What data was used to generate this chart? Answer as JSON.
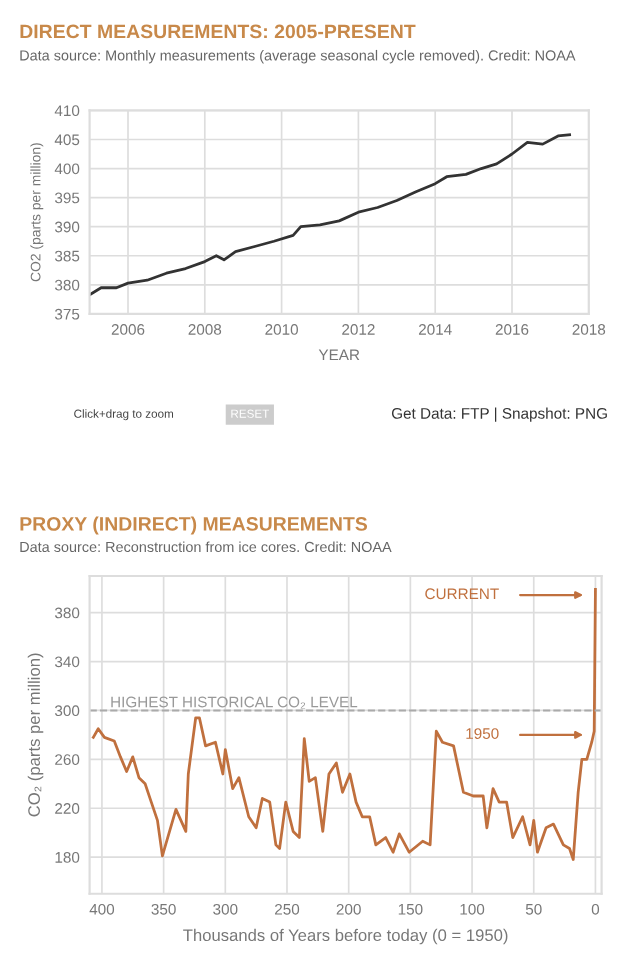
{
  "chart_data": [
    {
      "type": "line",
      "title": "DIRECT MEASUREMENTS: 2005-PRESENT",
      "subtitle": "Data source: Monthly measurements (average seasonal cycle removed). Credit: NOAA",
      "xlabel": "YEAR",
      "ylabel": "CO2 (parts per million)",
      "x": [
        2005.0,
        2005.3,
        2005.7,
        2006.0,
        2006.5,
        2007.0,
        2007.5,
        2008.0,
        2008.3,
        2008.5,
        2008.8,
        2009.3,
        2009.8,
        2010.3,
        2010.5,
        2011.0,
        2011.5,
        2012.0,
        2012.5,
        2013.0,
        2013.5,
        2014.0,
        2014.3,
        2014.8,
        2015.2,
        2015.6,
        2016.0,
        2016.4,
        2016.8,
        2017.2,
        2017.5
      ],
      "series": [
        {
          "color": "#333333",
          "values": [
            378.3,
            379.5,
            379.5,
            380.3,
            380.8,
            382.0,
            382.8,
            384.0,
            385.0,
            384.3,
            385.7,
            386.6,
            387.5,
            388.5,
            390.0,
            390.3,
            391.0,
            392.5,
            393.3,
            394.5,
            396.0,
            397.4,
            398.6,
            399.0,
            400.0,
            400.8,
            402.5,
            404.5,
            404.2,
            405.6,
            405.8
          ]
        }
      ],
      "xlim": [
        2005,
        2018
      ],
      "xticks": [
        2006,
        2008,
        2010,
        2012,
        2014,
        2016,
        2018
      ],
      "ylim": [
        375,
        410
      ],
      "yticks": [
        375,
        380,
        385,
        390,
        395,
        400,
        405,
        410
      ],
      "grid": true,
      "annotations": [
        "Click+drag to zoom",
        "RESET",
        "Get Data: FTP | Snapshot: PNG"
      ]
    },
    {
      "type": "line",
      "title": "PROXY (INDIRECT) MEASUREMENTS",
      "subtitle": "Data source: Reconstruction from ice cores. Credit: NOAA",
      "xlabel": "Thousands of Years before today (0 = 1950)",
      "ylabel": "CO₂ (parts per million)",
      "x": [
        407,
        403,
        398,
        390,
        385,
        380,
        375,
        370,
        365,
        360,
        355,
        351,
        340,
        332,
        330,
        324,
        321,
        316,
        308,
        302,
        300,
        294,
        289,
        281,
        275,
        270,
        264,
        259,
        256,
        251,
        245,
        240,
        236,
        232,
        227,
        221,
        216,
        210,
        205,
        199,
        194,
        189,
        183,
        178,
        170,
        164,
        159,
        151,
        140,
        134,
        129,
        124,
        115,
        107,
        99,
        91,
        88,
        83,
        78,
        72,
        67,
        59,
        53,
        50,
        47,
        40,
        34,
        26,
        21,
        18,
        14,
        11,
        7,
        3,
        1,
        0
      ],
      "series": [
        {
          "color": "#c0703e",
          "values": [
            278,
            285,
            278,
            275,
            262,
            250,
            262,
            245,
            240,
            225,
            210,
            181,
            219,
            201,
            248,
            294,
            294,
            271,
            274,
            248,
            268,
            236,
            245,
            213,
            204,
            228,
            225,
            190,
            187,
            225,
            201,
            196,
            277,
            242,
            245,
            201,
            248,
            257,
            233,
            248,
            225,
            213,
            213,
            190,
            196,
            184,
            199,
            184,
            193,
            190,
            283,
            274,
            271,
            233,
            230,
            230,
            204,
            236,
            225,
            225,
            196,
            213,
            190,
            210,
            184,
            204,
            207,
            190,
            187,
            178,
            233,
            260,
            260,
            274,
            283,
            399
          ]
        }
      ],
      "xlim": [
        410,
        -5
      ],
      "xticks": [
        400,
        350,
        300,
        250,
        200,
        150,
        100,
        50,
        0
      ],
      "ylim": [
        150,
        410
      ],
      "yticks": [
        180,
        220,
        260,
        300,
        340,
        380
      ],
      "grid": true,
      "ref_lines": [
        {
          "axis": "y",
          "value": 300,
          "label": "HIGHEST HISTORICAL CO₂ LEVEL",
          "color": "#aaaaaa",
          "line_style": "dashed"
        }
      ],
      "annotations": [
        "CURRENT",
        "1950"
      ]
    }
  ]
}
